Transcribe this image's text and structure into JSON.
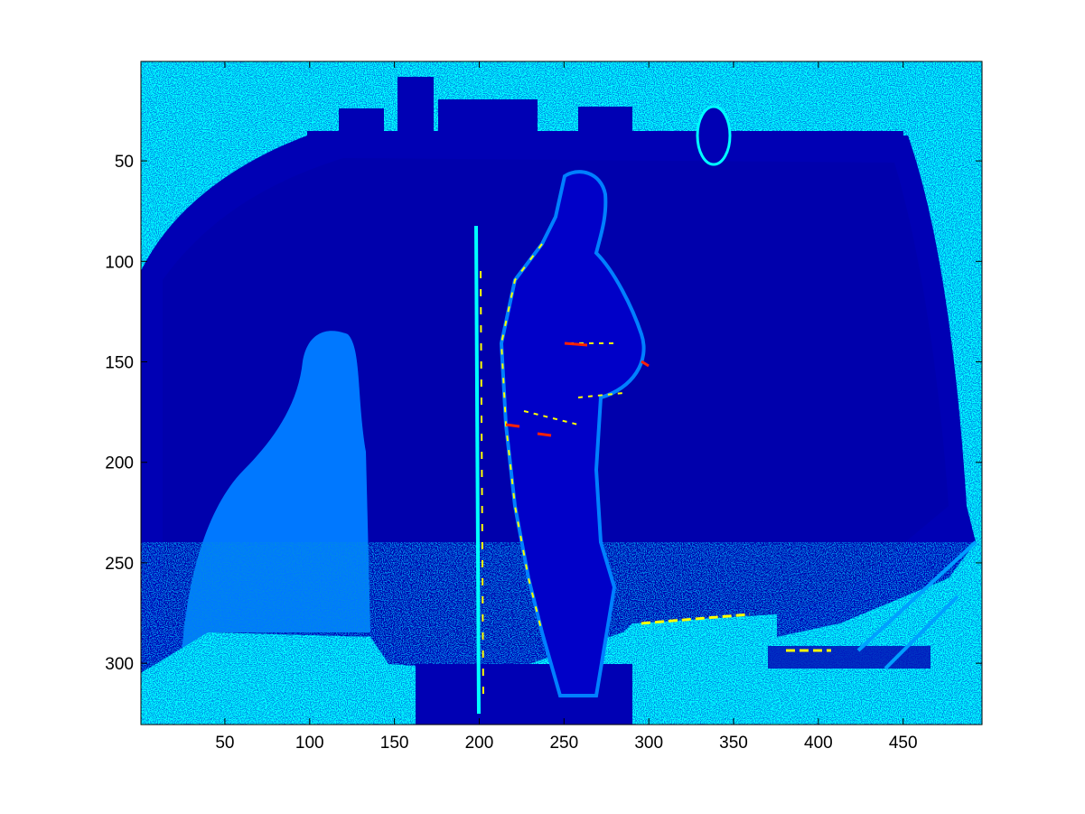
{
  "chart_data": {
    "type": "heatmap",
    "title": "",
    "xlabel": "",
    "ylabel": "",
    "xlim": [
      0.5,
      496.5
    ],
    "ylim": [
      0.5,
      330.5
    ],
    "y_direction": "reversed",
    "grid": false,
    "legend": "none",
    "colormap": "jet",
    "x_ticks": [
      50,
      100,
      150,
      200,
      250,
      300,
      350,
      400,
      450
    ],
    "x_tick_labels": [
      "50",
      "100",
      "150",
      "200",
      "250",
      "300",
      "350",
      "400",
      "450"
    ],
    "y_ticks": [
      50,
      100,
      150,
      200,
      250,
      300
    ],
    "y_tick_labels": [
      "50",
      "100",
      "150",
      "200",
      "250",
      "300"
    ],
    "colors": {
      "dark_blue": "#0000b4",
      "mid_blue": "#0040ff",
      "light_blue": "#008cff",
      "cyan": "#00ffff",
      "yellow": "#ffff00",
      "red": "#ff2000",
      "axis": "#000000",
      "background": "#ffffff"
    }
  }
}
